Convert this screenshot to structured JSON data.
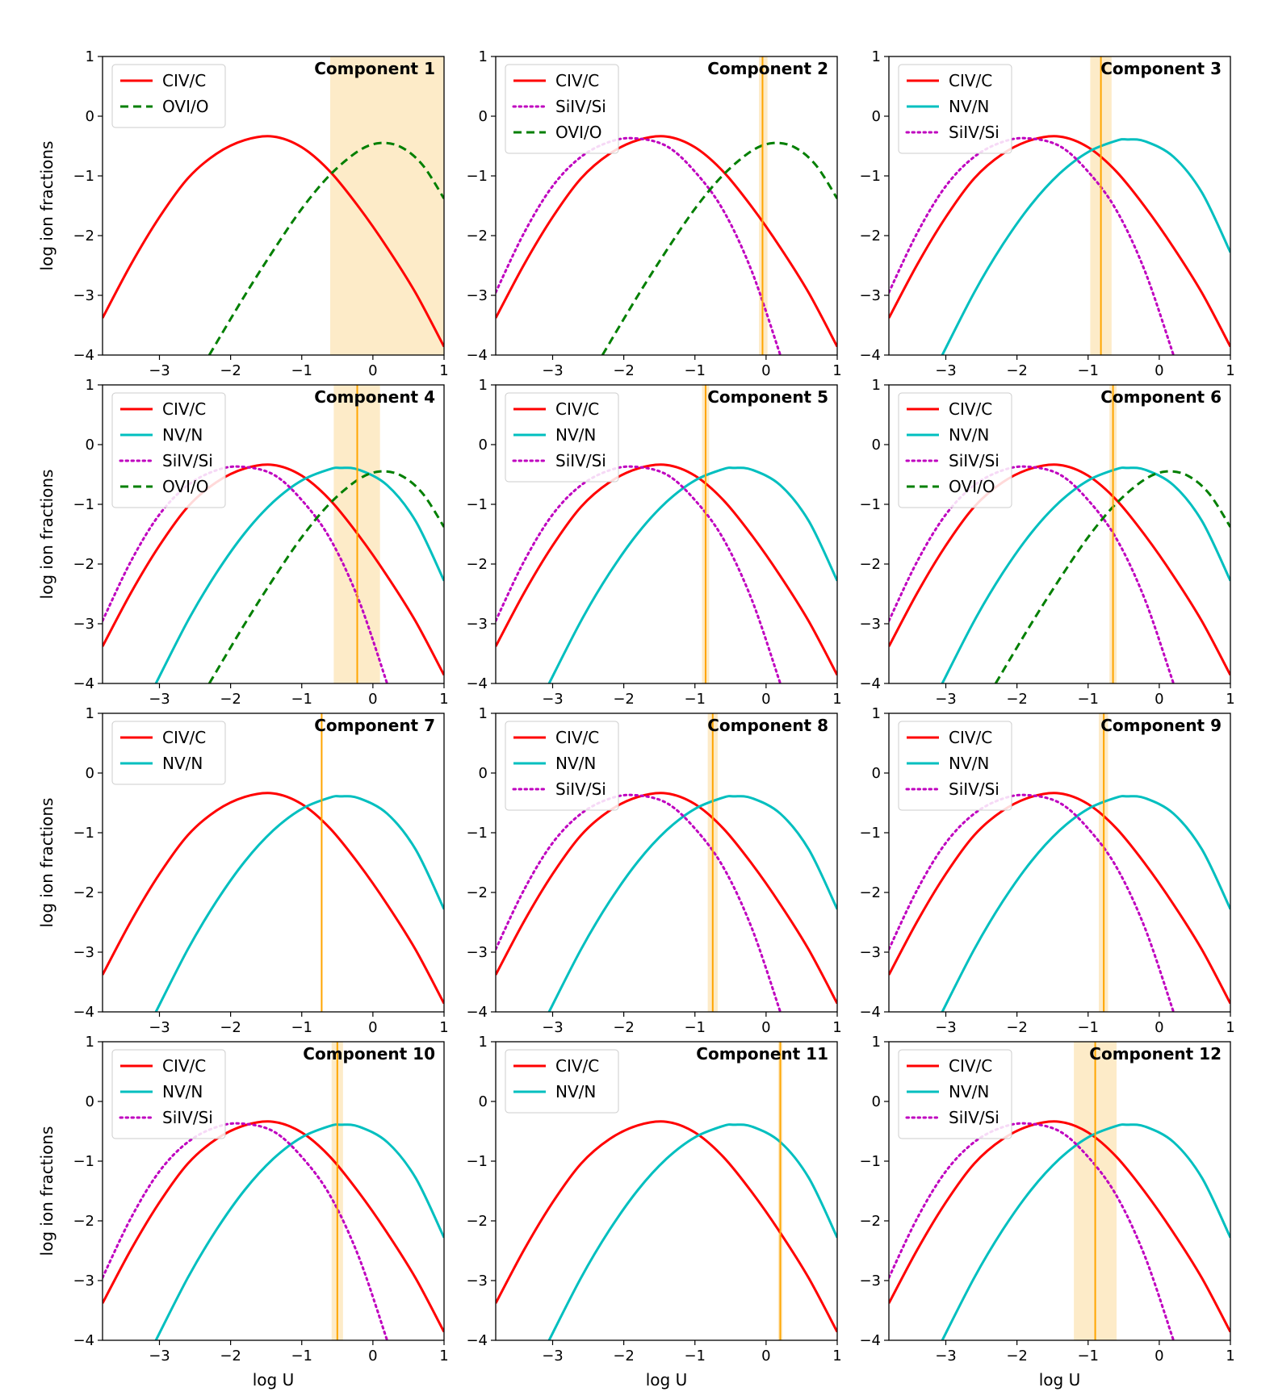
{
  "figure": {
    "xlabel": "log U",
    "ylabel": "log ion fractions",
    "xlim": [
      -3.8,
      1.0
    ],
    "ylim": [
      -4,
      1
    ],
    "xticks": [
      -3,
      -2,
      -1,
      0,
      1
    ],
    "yticks": [
      -4,
      -3,
      -2,
      -1,
      0,
      1
    ],
    "grid": false,
    "layout": "4 rows x 3 columns"
  },
  "chart_data": {
    "type": "line",
    "ions": [
      {
        "key": "CIV",
        "name": "CIV/C",
        "color": "#ff0000",
        "style": "solid",
        "x": [
          -3.8,
          -3.4,
          -3.0,
          -2.6,
          -2.2,
          -1.8,
          -1.4,
          -1.0,
          -0.6,
          -0.2,
          0.2,
          0.6,
          1.0
        ],
        "y": [
          -3.38,
          -2.48,
          -1.69,
          -1.04,
          -0.63,
          -0.4,
          -0.34,
          -0.52,
          -0.93,
          -1.52,
          -2.2,
          -2.96,
          -3.86
        ]
      },
      {
        "key": "NV",
        "name": "NV/N",
        "color": "#00bfbf",
        "style": "solid",
        "x": [
          -3.05,
          -2.6,
          -2.2,
          -1.8,
          -1.4,
          -1.0,
          -0.6,
          -0.45,
          -0.2,
          0.2,
          0.6,
          1.0
        ],
        "y": [
          -4.0,
          -2.95,
          -2.15,
          -1.48,
          -0.96,
          -0.6,
          -0.41,
          -0.39,
          -0.42,
          -0.68,
          -1.28,
          -2.28
        ]
      },
      {
        "key": "SiIV",
        "name": "SiIV/Si",
        "color": "#bf00bf",
        "style": "dotted",
        "x": [
          -3.8,
          -3.4,
          -3.0,
          -2.6,
          -2.2,
          -1.85,
          -1.4,
          -1.0,
          -0.6,
          -0.2,
          0.2
        ],
        "y": [
          -2.95,
          -1.95,
          -1.17,
          -0.68,
          -0.43,
          -0.37,
          -0.5,
          -0.93,
          -1.58,
          -2.6,
          -4.0
        ]
      },
      {
        "key": "OVI",
        "name": "OVI/O",
        "color": "#007f00",
        "style": "dashed",
        "x": [
          -2.3,
          -1.8,
          -1.4,
          -1.0,
          -0.6,
          -0.2,
          0.1,
          0.4,
          0.7,
          1.0
        ],
        "y": [
          -4.0,
          -3.0,
          -2.25,
          -1.55,
          -0.98,
          -0.58,
          -0.45,
          -0.52,
          -0.82,
          -1.38
        ]
      }
    ],
    "panels": [
      {
        "title": "Component 1",
        "ions": [
          "CIV",
          "OVI"
        ],
        "logU": null,
        "band": [
          -0.6,
          1.0
        ]
      },
      {
        "title": "Component 2",
        "ions": [
          "CIV",
          "SiIV",
          "OVI"
        ],
        "logU": -0.05,
        "band": [
          -0.1,
          0.02
        ]
      },
      {
        "title": "Component 3",
        "ions": [
          "CIV",
          "NV",
          "SiIV"
        ],
        "logU": -0.82,
        "band": [
          -0.97,
          -0.67
        ]
      },
      {
        "title": "Component 4",
        "ions": [
          "CIV",
          "NV",
          "SiIV",
          "OVI"
        ],
        "logU": -0.22,
        "band": [
          -0.55,
          0.1
        ]
      },
      {
        "title": "Component 5",
        "ions": [
          "CIV",
          "NV",
          "SiIV"
        ],
        "logU": -0.85,
        "band": [
          -0.9,
          -0.8
        ]
      },
      {
        "title": "Component 6",
        "ions": [
          "CIV",
          "NV",
          "SiIV",
          "OVI"
        ],
        "logU": -0.65,
        "band": [
          -0.7,
          -0.6
        ]
      },
      {
        "title": "Component 7",
        "ions": [
          "CIV",
          "NV"
        ],
        "logU": -0.72,
        "band": null
      },
      {
        "title": "Component 8",
        "ions": [
          "CIV",
          "NV",
          "SiIV"
        ],
        "logU": -0.75,
        "band": [
          -0.82,
          -0.68
        ]
      },
      {
        "title": "Component 9",
        "ions": [
          "CIV",
          "NV",
          "SiIV"
        ],
        "logU": -0.78,
        "band": [
          -0.85,
          -0.72
        ]
      },
      {
        "title": "Component 10",
        "ions": [
          "CIV",
          "NV",
          "SiIV"
        ],
        "logU": -0.5,
        "band": [
          -0.58,
          -0.42
        ]
      },
      {
        "title": "Component 11",
        "ions": [
          "CIV",
          "NV"
        ],
        "logU": 0.2,
        "band": [
          0.17,
          0.23
        ]
      },
      {
        "title": "Component 12",
        "ions": [
          "CIV",
          "NV",
          "SiIV"
        ],
        "logU": -0.9,
        "band": [
          -1.2,
          -0.6
        ]
      }
    ],
    "colors": {
      "marker_line": "#ffa500",
      "band": "#fdebc8"
    }
  }
}
